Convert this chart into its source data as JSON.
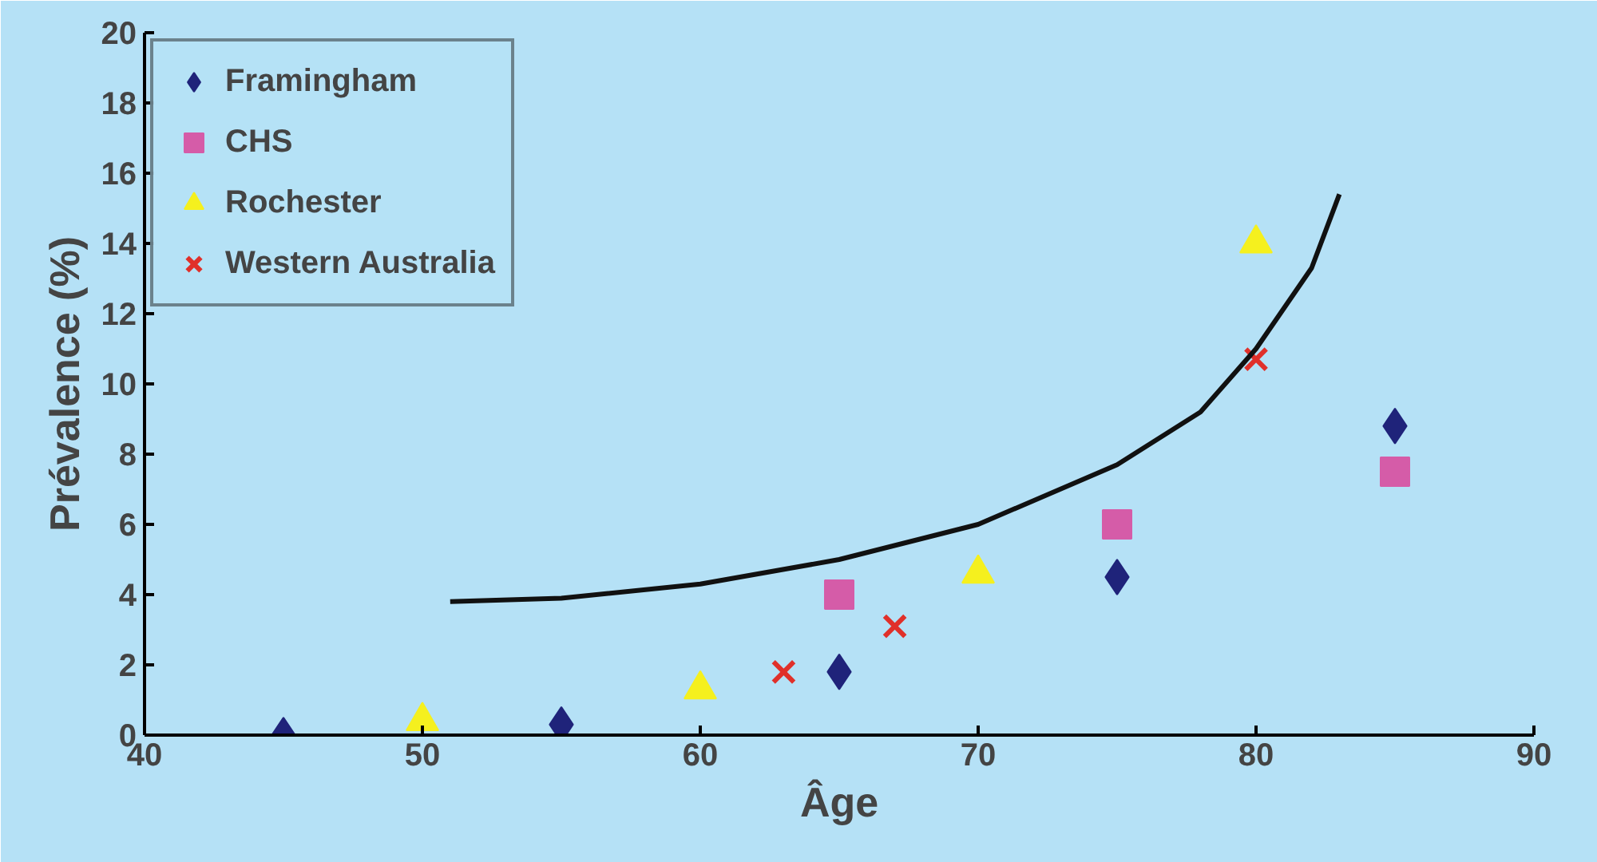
{
  "chart_data": {
    "type": "scatter",
    "xlabel": "Âge",
    "ylabel": "Prévalence (%)",
    "xlim": [
      40,
      90
    ],
    "ylim": [
      0,
      20
    ],
    "xticks": [
      40,
      50,
      60,
      70,
      80,
      90
    ],
    "yticks": [
      0,
      2,
      4,
      6,
      8,
      10,
      12,
      14,
      16,
      18,
      20
    ],
    "grid": false,
    "legend": "top left",
    "series": [
      {
        "name": "Framingham",
        "color": "#1f237a",
        "marker": "diamond",
        "x": [
          45,
          55,
          65,
          75,
          85
        ],
        "values": [
          0,
          0.3,
          1.8,
          4.5,
          8.8
        ]
      },
      {
        "name": "CHS",
        "color": "#d55ca8",
        "marker": "square",
        "x": [
          65,
          75,
          85
        ],
        "values": [
          4.0,
          6.0,
          7.5
        ]
      },
      {
        "name": "Rochester",
        "color": "#f5f01e",
        "marker": "triangle",
        "x": [
          50,
          60,
          70,
          80
        ],
        "values": [
          0.4,
          1.3,
          4.6,
          14.0
        ]
      },
      {
        "name": "Western Australia",
        "color": "#e0302a",
        "marker": "cross",
        "x": [
          63,
          67,
          80
        ],
        "values": [
          1.8,
          3.1,
          10.7
        ]
      },
      {
        "type": "line",
        "color": "#111111",
        "x": [
          51,
          55,
          60,
          65,
          70,
          75,
          78,
          80,
          82,
          83
        ],
        "values": [
          3.8,
          3.9,
          4.3,
          5.0,
          6.0,
          7.7,
          9.2,
          11.0,
          13.3,
          15.4
        ]
      }
    ]
  }
}
